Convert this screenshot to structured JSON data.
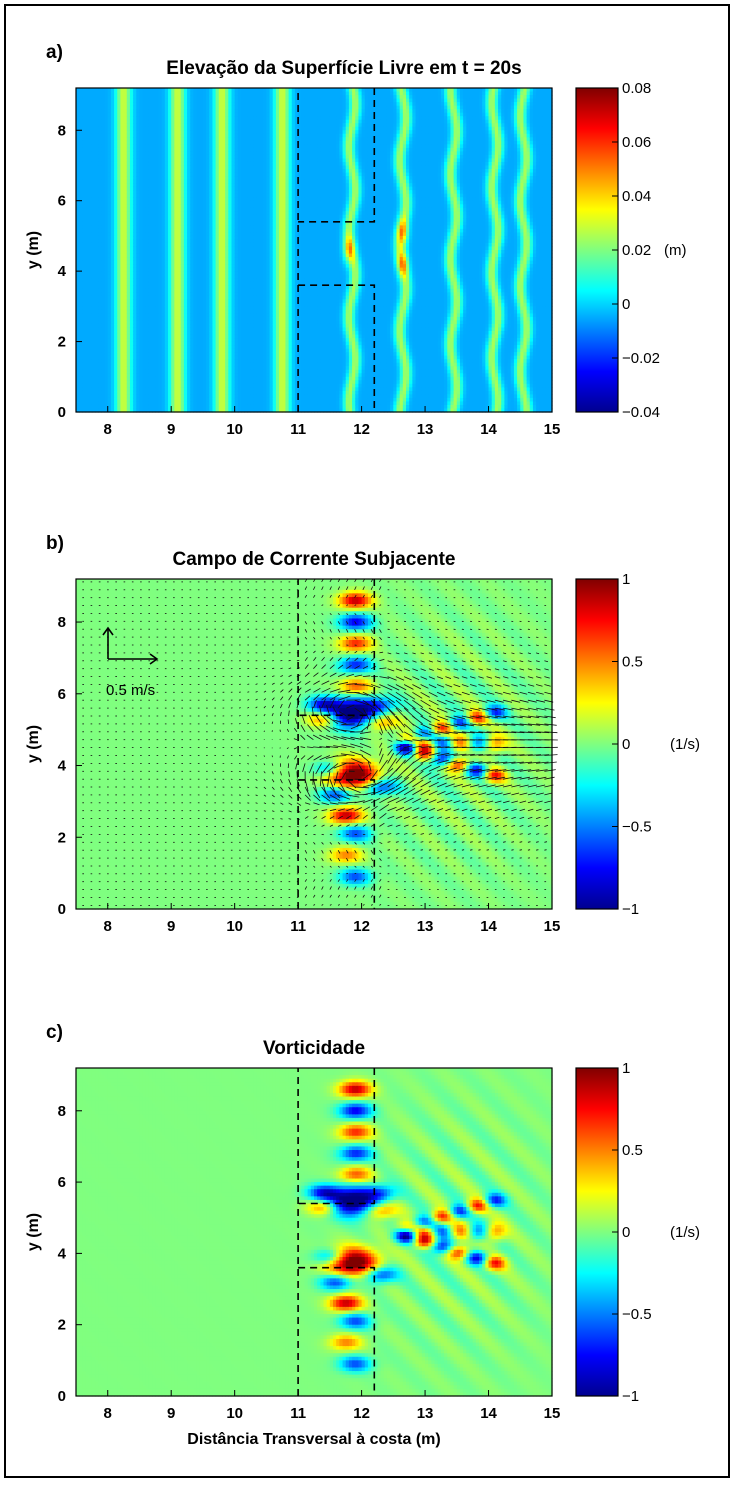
{
  "chart_data": [
    {
      "panel_label": "a)",
      "type": "heatmap",
      "title": "Elevação da Superfície Livre em t = 20s",
      "xlabel": "",
      "ylabel": "y (m)",
      "xlim": [
        7.5,
        15
      ],
      "ylim": [
        0,
        9.2
      ],
      "xticks": [
        "8",
        "9",
        "10",
        "11",
        "12",
        "13",
        "14",
        "15"
      ],
      "yticks": [
        "0",
        "2",
        "4",
        "6",
        "8"
      ],
      "colorbar": {
        "ticks": [
          "0.08",
          "0.06",
          "0.04",
          "0.02",
          "0",
          "-0.02",
          "-0.04"
        ],
        "range": [
          -0.04,
          0.08
        ],
        "unit": "(m)"
      },
      "field": {
        "description_values": {
          "wave_crest_x": [
            8.25,
            9.1,
            9.8,
            10.75,
            11.85,
            12.65,
            13.45,
            14.1,
            14.55
          ],
          "crest_amplitude": 0.035,
          "trough_value": 0.0,
          "bump_points": [
            [
              11.8,
              4.6,
              0.06
            ],
            [
              12.65,
              4.2,
              0.055
            ],
            [
              12.65,
              5.1,
              0.055
            ]
          ]
        }
      },
      "breakwater_outline": [
        [
          [
            11,
            0
          ],
          [
            11,
            9.2
          ]
        ],
        [
          [
            12.2,
            9.2
          ],
          [
            12.2,
            5.4
          ],
          [
            11,
            5.4
          ]
        ],
        [
          [
            11,
            3.6
          ],
          [
            12.2,
            3.6
          ],
          [
            12.2,
            0
          ]
        ]
      ]
    },
    {
      "panel_label": "b)",
      "type": "heatmap",
      "title": "Campo de Corrente Subjacente",
      "xlabel": "",
      "ylabel": "y (m)",
      "xlim": [
        7.5,
        15
      ],
      "ylim": [
        0,
        9.2
      ],
      "xticks": [
        "8",
        "9",
        "10",
        "11",
        "12",
        "13",
        "14",
        "15"
      ],
      "yticks": [
        "0",
        "2",
        "4",
        "6",
        "8"
      ],
      "colorbar": {
        "ticks": [
          "1",
          "0.5",
          "0",
          "-0.5",
          "-1"
        ],
        "range": [
          -1,
          1
        ],
        "unit": "(1/s)"
      },
      "vector_scale_label": "0.5 m/s",
      "vortices": [
        [
          11.85,
          5.5,
          -1
        ],
        [
          11.85,
          3.75,
          1
        ]
      ],
      "breakwater_outline": [
        [
          [
            11,
            0
          ],
          [
            11,
            9.2
          ]
        ],
        [
          [
            12.2,
            9.2
          ],
          [
            12.2,
            5.4
          ],
          [
            11,
            5.4
          ]
        ],
        [
          [
            11,
            3.6
          ],
          [
            12.2,
            3.6
          ],
          [
            12.2,
            0
          ]
        ]
      ]
    },
    {
      "panel_label": "c)",
      "type": "heatmap",
      "title": "Vorticidade",
      "xlabel": "Distância Transversal à costa (m)",
      "ylabel": "y (m)",
      "xlim": [
        7.5,
        15
      ],
      "ylim": [
        0,
        9.2
      ],
      "xticks": [
        "8",
        "9",
        "10",
        "11",
        "12",
        "13",
        "14",
        "15"
      ],
      "yticks": [
        "0",
        "2",
        "4",
        "6",
        "8"
      ],
      "colorbar": {
        "ticks": [
          "1",
          "0.5",
          "0",
          "-0.5",
          "-1"
        ],
        "range": [
          -1,
          1
        ],
        "unit": "(1/s)"
      },
      "vortices": [
        [
          11.85,
          5.5,
          -1
        ],
        [
          11.85,
          3.75,
          1
        ]
      ],
      "breakwater_outline": [
        [
          [
            11,
            0
          ],
          [
            11,
            9.2
          ]
        ],
        [
          [
            12.2,
            9.2
          ],
          [
            12.2,
            5.4
          ],
          [
            11,
            5.4
          ]
        ],
        [
          [
            11,
            3.6
          ],
          [
            12.2,
            3.6
          ],
          [
            12.2,
            0
          ]
        ]
      ]
    }
  ]
}
